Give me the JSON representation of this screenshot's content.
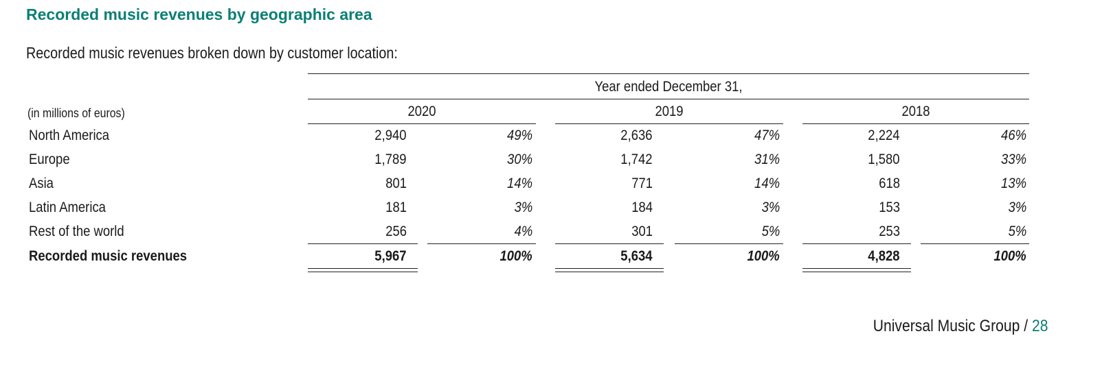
{
  "title": "Recorded music revenues by geographic area",
  "subtitle": "Recorded music revenues broken down by customer location:",
  "table": {
    "period_header": "Year ended December 31,",
    "units_label": "(in millions of euros)",
    "years": [
      "2020",
      "2019",
      "2018"
    ],
    "rows": [
      {
        "label": "North America",
        "cells": [
          [
            "2,940",
            "49%"
          ],
          [
            "2,636",
            "47%"
          ],
          [
            "2,224",
            "46%"
          ]
        ]
      },
      {
        "label": "Europe",
        "cells": [
          [
            "1,789",
            "30%"
          ],
          [
            "1,742",
            "31%"
          ],
          [
            "1,580",
            "33%"
          ]
        ]
      },
      {
        "label": "Asia",
        "cells": [
          [
            "801",
            "14%"
          ],
          [
            "771",
            "14%"
          ],
          [
            "618",
            "13%"
          ]
        ]
      },
      {
        "label": "Latin America",
        "cells": [
          [
            "181",
            "3%"
          ],
          [
            "184",
            "3%"
          ],
          [
            "153",
            "3%"
          ]
        ]
      },
      {
        "label": "Rest of the world",
        "cells": [
          [
            "256",
            "4%"
          ],
          [
            "301",
            "5%"
          ],
          [
            "253",
            "5%"
          ]
        ]
      }
    ],
    "total": {
      "label": "Recorded music revenues",
      "cells": [
        [
          "5,967",
          "100%"
        ],
        [
          "5,634",
          "100%"
        ],
        [
          "4,828",
          "100%"
        ]
      ]
    }
  },
  "footer": {
    "company": "Universal Music Group /",
    "page": "28"
  }
}
